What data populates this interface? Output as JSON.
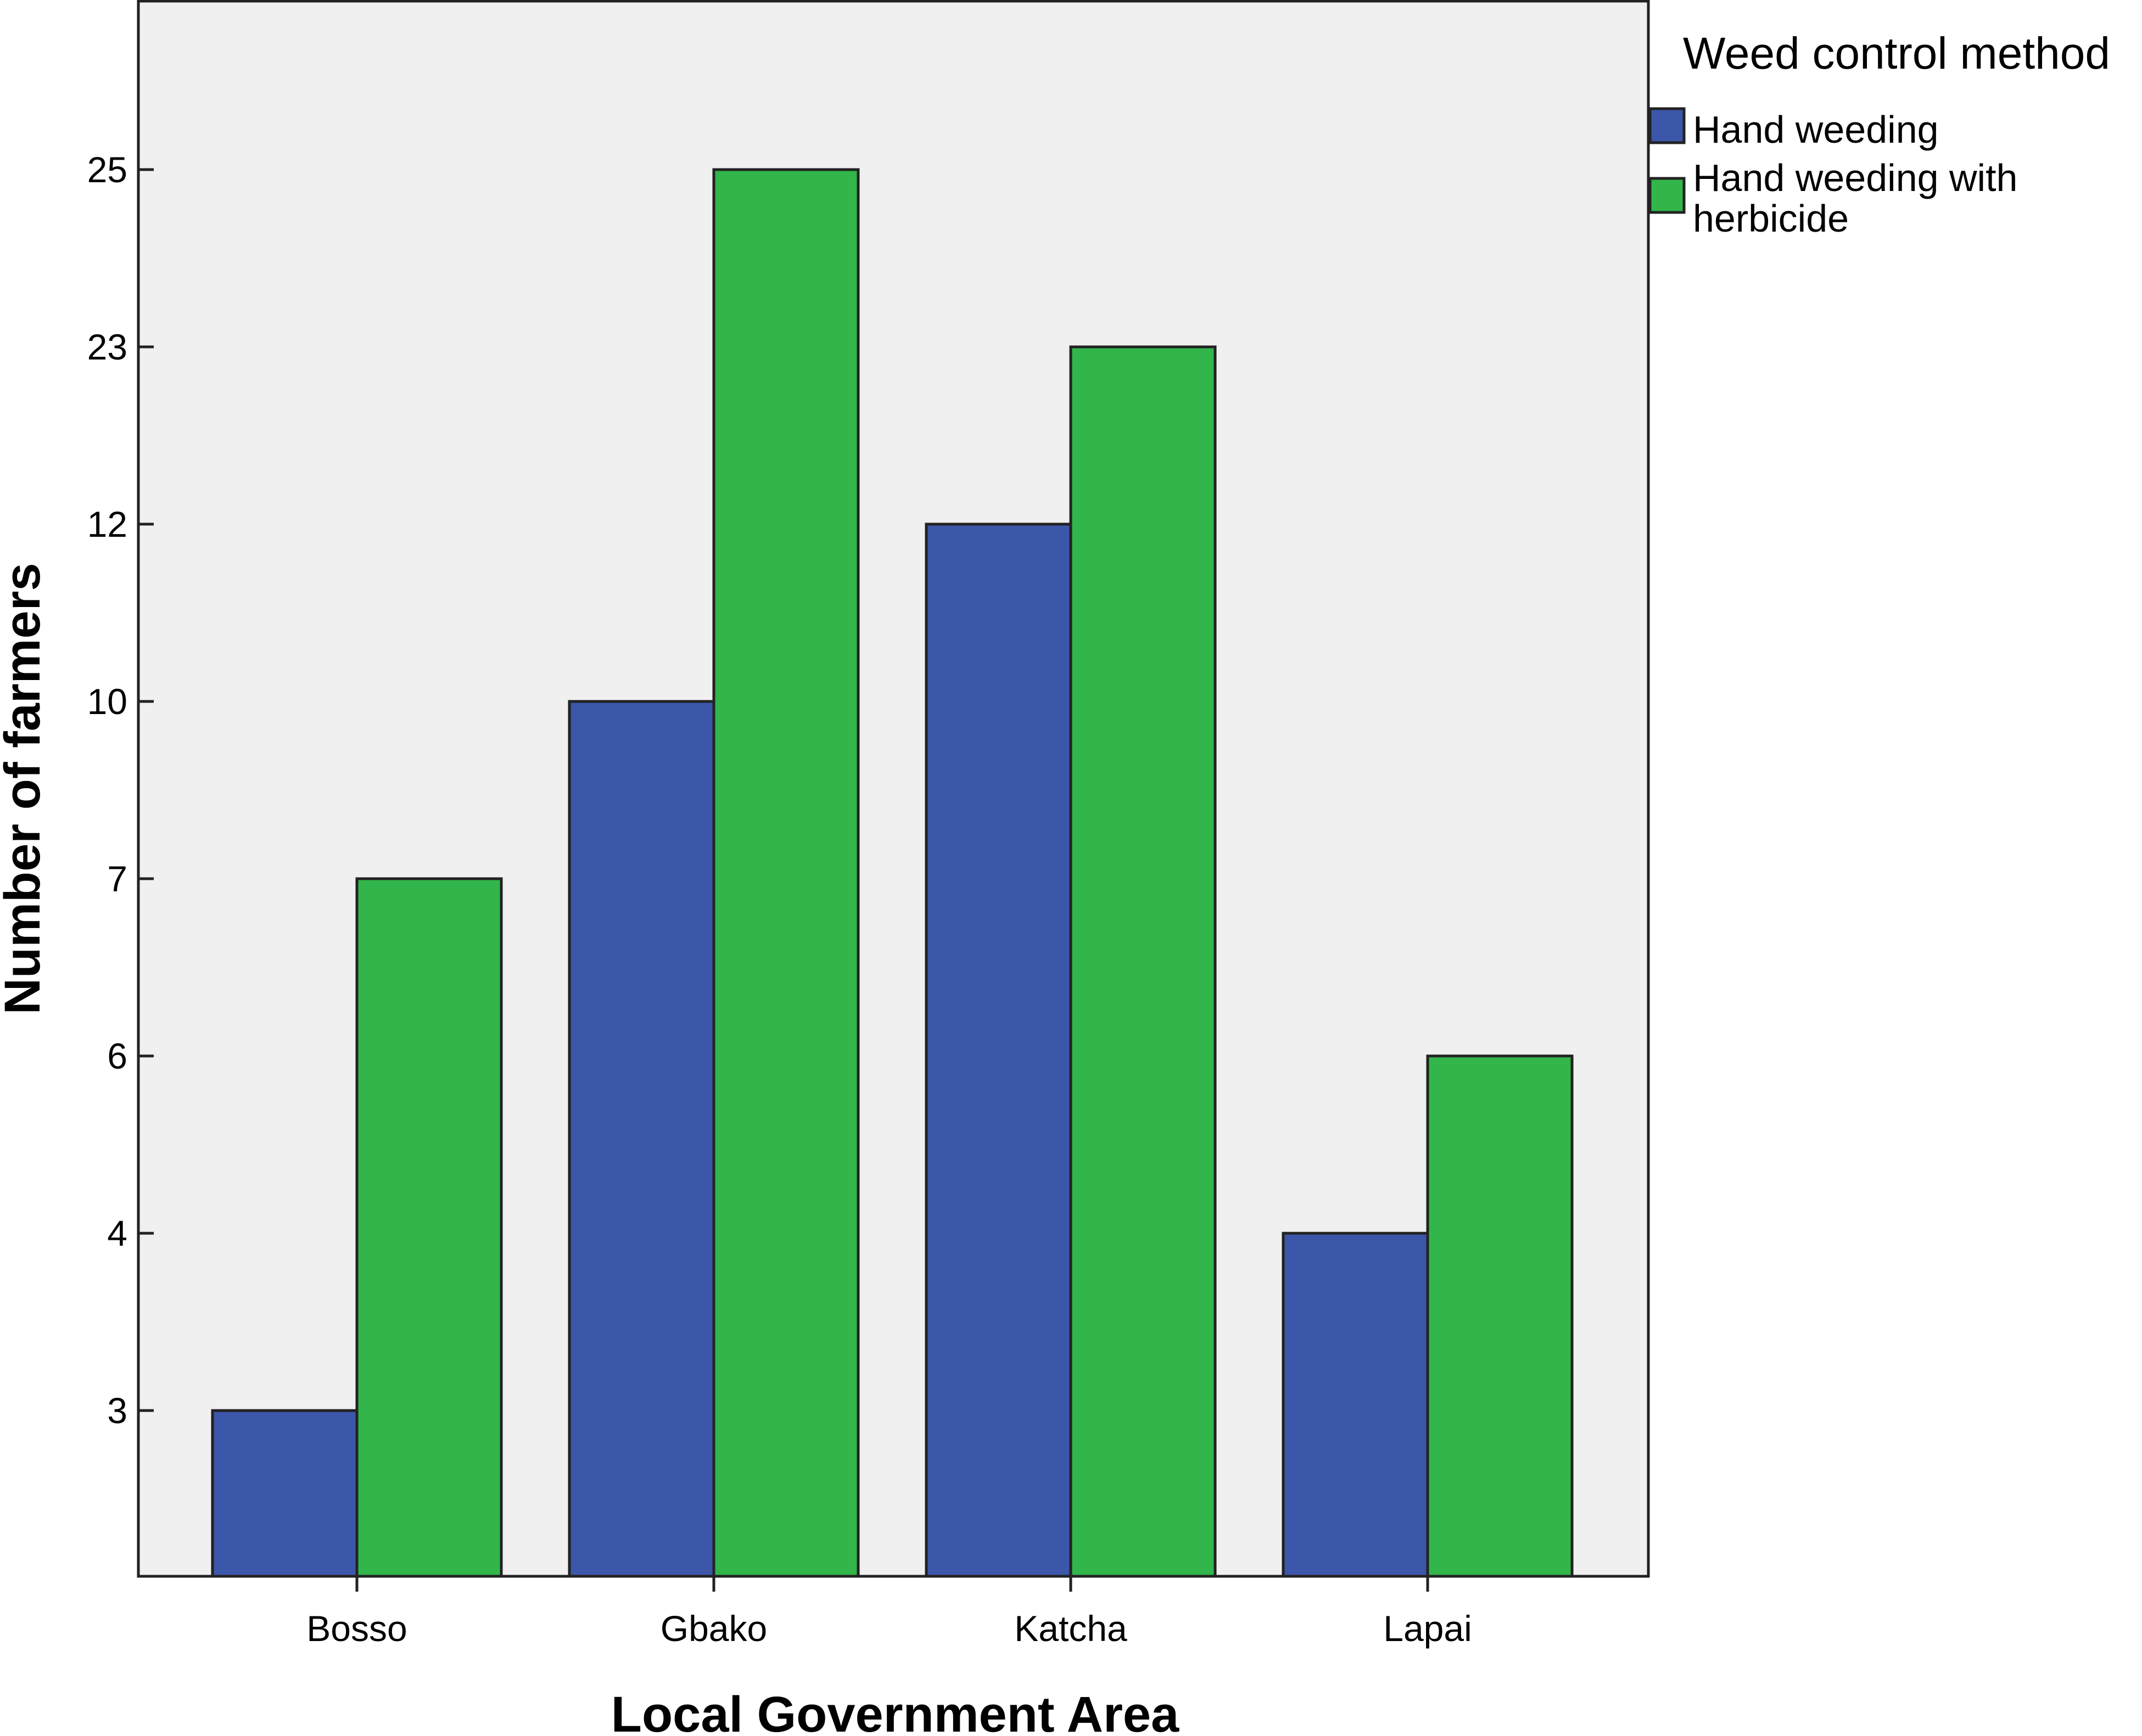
{
  "chart_data": {
    "type": "bar",
    "xlabel": "Local Government Area",
    "ylabel": "Number of farmers",
    "categories": [
      "Bosso",
      "Gbako",
      "Katcha",
      "Lapai"
    ],
    "y_ticks": [
      "3",
      "4",
      "6",
      "7",
      "10",
      "12",
      "23",
      "25"
    ],
    "y_scale": "categorical",
    "legend": {
      "title": "Weed control method",
      "placement": "top-right",
      "items": [
        {
          "label": "Hand weeding",
          "color": "#3c56a9"
        },
        {
          "label_lines": [
            "Hand weeding with",
            "herbicide"
          ],
          "color": "#32b54a"
        }
      ]
    },
    "series": [
      {
        "name": "Hand weeding",
        "color": "#3c56a9",
        "values": [
          3,
          10,
          12,
          4
        ]
      },
      {
        "name": "Hand weeding with herbicide",
        "color": "#32b54a",
        "values": [
          7,
          25,
          23,
          6
        ]
      }
    ],
    "plot_background": "#f0f0f0",
    "grid": false
  }
}
